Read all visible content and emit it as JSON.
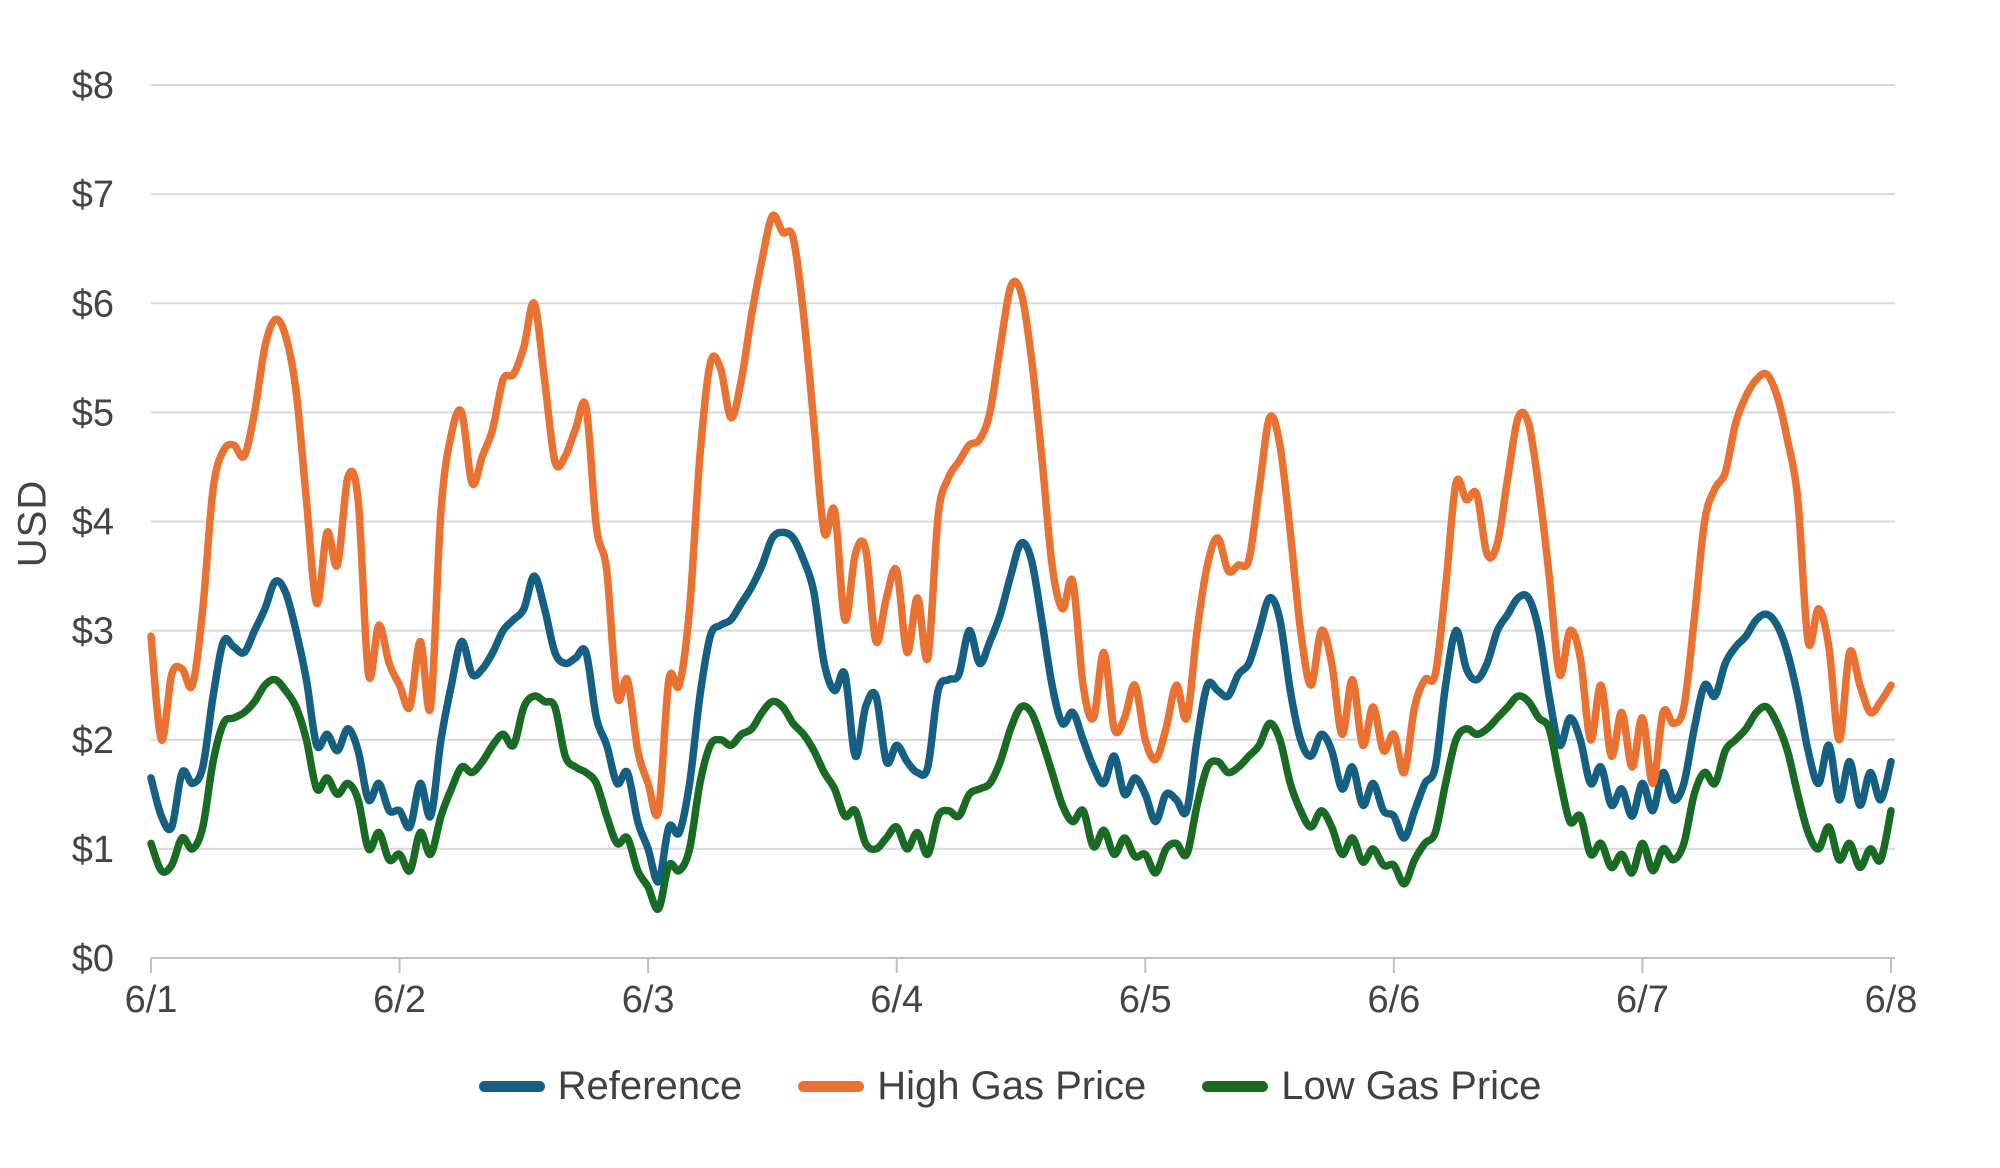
{
  "chart_data": {
    "type": "line",
    "title": "",
    "xlabel": "",
    "ylabel": "USD",
    "x_unit": "hours (hourly points starting 6/1 00:00, 7 days)",
    "x_ticks": [
      "6/1",
      "6/2",
      "6/3",
      "6/4",
      "6/5",
      "6/6",
      "6/7",
      "6/8"
    ],
    "y_ticks": [
      "$0",
      "$1",
      "$2",
      "$3",
      "$4",
      "$5",
      "$6",
      "$7",
      "$8"
    ],
    "ylim": [
      0,
      8
    ],
    "xlim_hours": [
      0,
      168
    ],
    "grid": true,
    "smooth_lines": true,
    "legend_position": "bottom-center",
    "grid_color": "#D9D9D9",
    "axis_color": "#BFBFBF",
    "text_color": "#444444",
    "series": [
      {
        "name": "Reference",
        "color": "#156082",
        "values": [
          1.65,
          1.3,
          1.2,
          1.7,
          1.6,
          1.75,
          2.4,
          2.9,
          2.85,
          2.8,
          3.0,
          3.2,
          3.45,
          3.35,
          3.0,
          2.55,
          1.95,
          2.05,
          1.9,
          2.1,
          1.9,
          1.45,
          1.6,
          1.35,
          1.35,
          1.2,
          1.6,
          1.3,
          2.0,
          2.5,
          2.9,
          2.6,
          2.65,
          2.8,
          3.0,
          3.1,
          3.2,
          3.5,
          3.2,
          2.8,
          2.7,
          2.75,
          2.8,
          2.2,
          1.95,
          1.6,
          1.7,
          1.25,
          1.0,
          0.7,
          1.2,
          1.15,
          1.6,
          2.4,
          2.95,
          3.05,
          3.1,
          3.25,
          3.4,
          3.6,
          3.85,
          3.9,
          3.85,
          3.65,
          3.35,
          2.7,
          2.45,
          2.6,
          1.85,
          2.3,
          2.4,
          1.8,
          1.95,
          1.8,
          1.7,
          1.75,
          2.45,
          2.55,
          2.6,
          3.0,
          2.7,
          2.9,
          3.15,
          3.5,
          3.8,
          3.65,
          3.1,
          2.5,
          2.15,
          2.25,
          2.0,
          1.75,
          1.6,
          1.85,
          1.5,
          1.65,
          1.5,
          1.25,
          1.5,
          1.45,
          1.35,
          2.0,
          2.5,
          2.45,
          2.4,
          2.6,
          2.7,
          3.0,
          3.3,
          3.1,
          2.45,
          2.0,
          1.85,
          2.05,
          1.9,
          1.55,
          1.75,
          1.4,
          1.6,
          1.35,
          1.3,
          1.1,
          1.35,
          1.6,
          1.75,
          2.5,
          3.0,
          2.65,
          2.55,
          2.7,
          3.0,
          3.15,
          3.3,
          3.3,
          3.0,
          2.4,
          1.95,
          2.2,
          2.0,
          1.6,
          1.75,
          1.4,
          1.55,
          1.3,
          1.6,
          1.35,
          1.7,
          1.45,
          1.6,
          2.1,
          2.5,
          2.4,
          2.7,
          2.85,
          2.95,
          3.1,
          3.15,
          3.05,
          2.8,
          2.4,
          1.9,
          1.6,
          1.95,
          1.45,
          1.8,
          1.4,
          1.7,
          1.45,
          1.8
        ]
      },
      {
        "name": "High Gas Price",
        "color": "#E97132",
        "values": [
          2.95,
          2.0,
          2.6,
          2.65,
          2.5,
          3.2,
          4.3,
          4.65,
          4.7,
          4.6,
          5.0,
          5.6,
          5.85,
          5.7,
          5.2,
          4.2,
          3.25,
          3.9,
          3.6,
          4.4,
          4.2,
          2.6,
          3.05,
          2.7,
          2.5,
          2.3,
          2.9,
          2.3,
          4.1,
          4.8,
          5.0,
          4.35,
          4.6,
          4.85,
          5.3,
          5.35,
          5.6,
          6.0,
          5.3,
          4.55,
          4.6,
          4.85,
          5.05,
          3.95,
          3.55,
          2.4,
          2.55,
          1.9,
          1.6,
          1.35,
          2.55,
          2.5,
          3.2,
          4.6,
          5.45,
          5.4,
          4.95,
          5.3,
          5.9,
          6.4,
          6.8,
          6.65,
          6.6,
          5.9,
          4.9,
          3.9,
          4.1,
          3.1,
          3.7,
          3.75,
          2.9,
          3.3,
          3.55,
          2.8,
          3.3,
          2.75,
          4.05,
          4.4,
          4.55,
          4.7,
          4.75,
          5.0,
          5.6,
          6.15,
          6.1,
          5.5,
          4.6,
          3.6,
          3.2,
          3.45,
          2.5,
          2.2,
          2.8,
          2.1,
          2.2,
          2.5,
          2.0,
          1.82,
          2.1,
          2.5,
          2.2,
          3.0,
          3.6,
          3.85,
          3.55,
          3.6,
          3.65,
          4.3,
          4.95,
          4.7,
          3.9,
          3.0,
          2.5,
          3.0,
          2.7,
          2.05,
          2.55,
          1.95,
          2.3,
          1.9,
          2.05,
          1.7,
          2.3,
          2.55,
          2.6,
          3.4,
          4.35,
          4.2,
          4.25,
          3.7,
          3.8,
          4.4,
          4.95,
          4.9,
          4.3,
          3.5,
          2.6,
          3.0,
          2.75,
          2.0,
          2.5,
          1.85,
          2.25,
          1.75,
          2.2,
          1.6,
          2.25,
          2.15,
          2.3,
          3.1,
          4.0,
          4.3,
          4.45,
          4.9,
          5.15,
          5.3,
          5.35,
          5.15,
          4.75,
          4.2,
          2.9,
          3.2,
          2.85,
          2.0,
          2.8,
          2.5,
          2.25,
          2.35,
          2.5
        ]
      },
      {
        "name": "Low Gas Price",
        "color": "#196B24",
        "values": [
          1.05,
          0.8,
          0.85,
          1.1,
          1.0,
          1.2,
          1.8,
          2.15,
          2.2,
          2.25,
          2.35,
          2.5,
          2.55,
          2.45,
          2.3,
          2.0,
          1.55,
          1.65,
          1.5,
          1.6,
          1.45,
          1.0,
          1.15,
          0.9,
          0.95,
          0.8,
          1.15,
          0.95,
          1.3,
          1.55,
          1.75,
          1.7,
          1.8,
          1.95,
          2.05,
          1.95,
          2.3,
          2.4,
          2.35,
          2.3,
          1.85,
          1.75,
          1.7,
          1.6,
          1.3,
          1.05,
          1.1,
          0.8,
          0.65,
          0.45,
          0.85,
          0.8,
          1.0,
          1.6,
          1.95,
          2.0,
          1.95,
          2.05,
          2.1,
          2.25,
          2.35,
          2.3,
          2.15,
          2.05,
          1.9,
          1.7,
          1.55,
          1.3,
          1.35,
          1.05,
          1.0,
          1.1,
          1.2,
          1.0,
          1.15,
          0.95,
          1.3,
          1.35,
          1.3,
          1.5,
          1.55,
          1.6,
          1.8,
          2.1,
          2.3,
          2.25,
          2.0,
          1.7,
          1.4,
          1.25,
          1.35,
          1.02,
          1.17,
          0.95,
          1.1,
          0.93,
          0.95,
          0.78,
          1.0,
          1.05,
          0.95,
          1.4,
          1.75,
          1.8,
          1.7,
          1.75,
          1.85,
          1.95,
          2.15,
          2.0,
          1.6,
          1.35,
          1.2,
          1.35,
          1.2,
          0.95,
          1.1,
          0.88,
          1.0,
          0.85,
          0.85,
          0.68,
          0.9,
          1.05,
          1.15,
          1.6,
          2.0,
          2.1,
          2.05,
          2.1,
          2.2,
          2.3,
          2.4,
          2.35,
          2.2,
          2.1,
          1.65,
          1.25,
          1.3,
          0.95,
          1.05,
          0.83,
          0.95,
          0.78,
          1.05,
          0.8,
          1.0,
          0.9,
          1.05,
          1.5,
          1.7,
          1.6,
          1.9,
          2.0,
          2.1,
          2.25,
          2.3,
          2.15,
          1.9,
          1.5,
          1.15,
          1.0,
          1.2,
          0.9,
          1.05,
          0.83,
          1.0,
          0.9,
          1.35
        ]
      }
    ]
  }
}
